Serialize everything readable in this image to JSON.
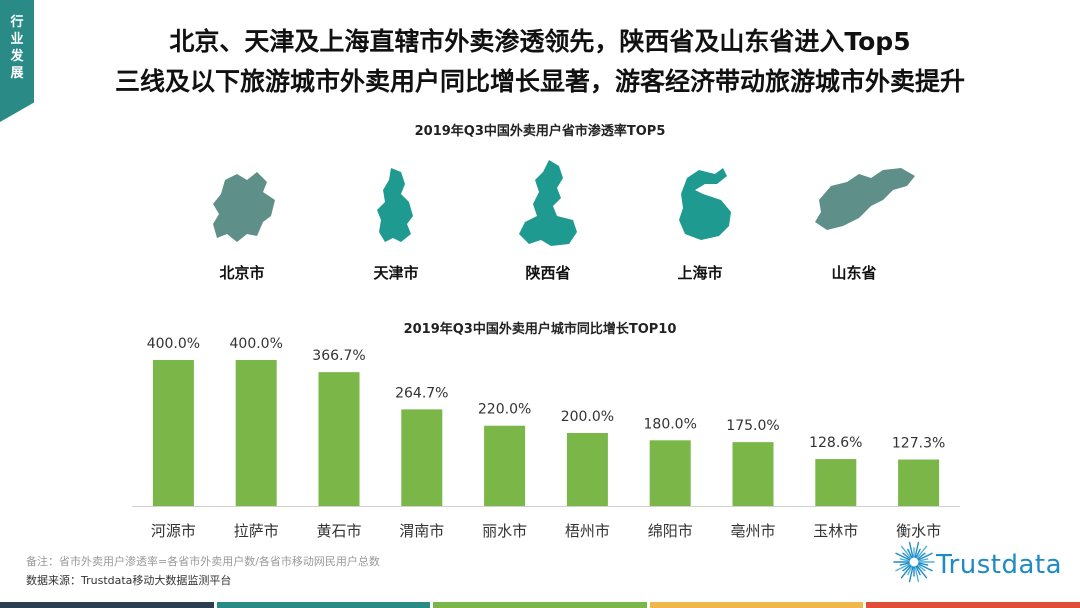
{
  "section_tag": "行业发展",
  "headline": {
    "line1": "北京、天津及上海直辖市外卖渗透领先，陕西省及山东省进入Top5",
    "line2": "三线及以下旅游城市外卖用户同比增长显著，游客经济带动旅游城市外卖提升"
  },
  "map_panel": {
    "title": "2019年Q3中国外卖用户省市渗透率TOP5",
    "provinces": [
      {
        "name": "北京市",
        "color": "#5f8f89",
        "icon": "beijing-map-icon"
      },
      {
        "name": "天津市",
        "color": "#1e9a90",
        "icon": "tianjin-map-icon"
      },
      {
        "name": "陕西省",
        "color": "#1e9a90",
        "icon": "shaanxi-map-icon"
      },
      {
        "name": "上海市",
        "color": "#1e9a90",
        "icon": "shanghai-map-icon"
      },
      {
        "name": "山东省",
        "color": "#5f8f89",
        "icon": "shandong-map-icon"
      }
    ]
  },
  "chart_data": {
    "type": "bar",
    "title": "2019年Q3中国外卖用户城市同比增长TOP10",
    "categories": [
      "河源市",
      "拉萨市",
      "黄石市",
      "渭南市",
      "丽水市",
      "梧州市",
      "绵阳市",
      "亳州市",
      "玉林市",
      "衡水市"
    ],
    "values": [
      400.0,
      400.0,
      366.7,
      264.7,
      220.0,
      200.0,
      180.0,
      175.0,
      128.6,
      127.3
    ],
    "data_labels": [
      "400.0%",
      "400.0%",
      "366.7%",
      "264.7%",
      "220.0%",
      "200.0%",
      "180.0%",
      "175.0%",
      "128.6%",
      "127.3%"
    ],
    "ylim": [
      0,
      400
    ],
    "bar_color": "#7ab648",
    "grid": false,
    "xlabel": "",
    "ylabel": ""
  },
  "footer": {
    "note": "备注：省市外卖用户渗透率=各省市外卖用户数/各省市移动网民用户总数",
    "source": "数据来源：Trustdata移动大数据监测平台",
    "logo_text": "Trustdata"
  },
  "bottom_bar_colors": [
    "#2b3e50",
    "#2a8b86",
    "#7ab648",
    "#f0b84a",
    "#e04e3a"
  ]
}
